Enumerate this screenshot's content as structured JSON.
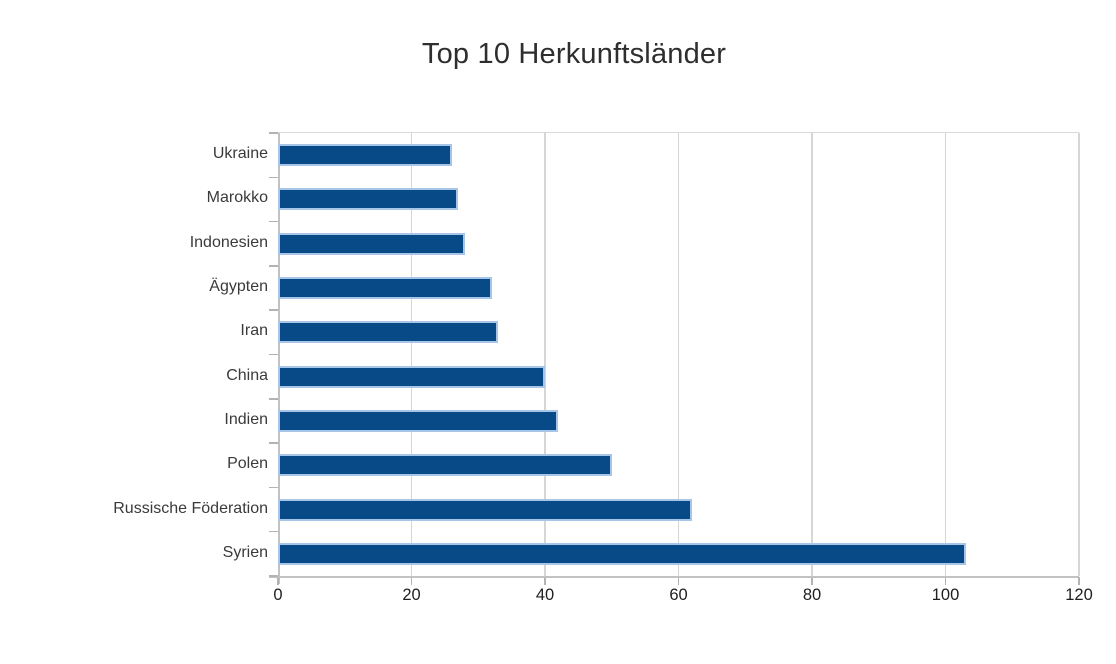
{
  "chart_data": {
    "type": "bar",
    "orientation": "horizontal",
    "title": "Top 10 Herkunftsländer",
    "categories": [
      "Ukraine",
      "Marokko",
      "Indonesien",
      "Ägypten",
      "Iran",
      "China",
      "Indien",
      "Polen",
      "Russische Föderation",
      "Syrien"
    ],
    "values": [
      26,
      27,
      28,
      32,
      33,
      40,
      42,
      50,
      62,
      103
    ],
    "xlabel": "",
    "ylabel": "",
    "xlim": [
      0,
      120
    ],
    "xticks": [
      0,
      20,
      40,
      60,
      80,
      100,
      120
    ],
    "grid": "vertical-on",
    "legend": "none",
    "bar_fill_color": "#074A87",
    "bar_border_color": "#A7C6E7",
    "background_color": "#FFFFFF"
  }
}
